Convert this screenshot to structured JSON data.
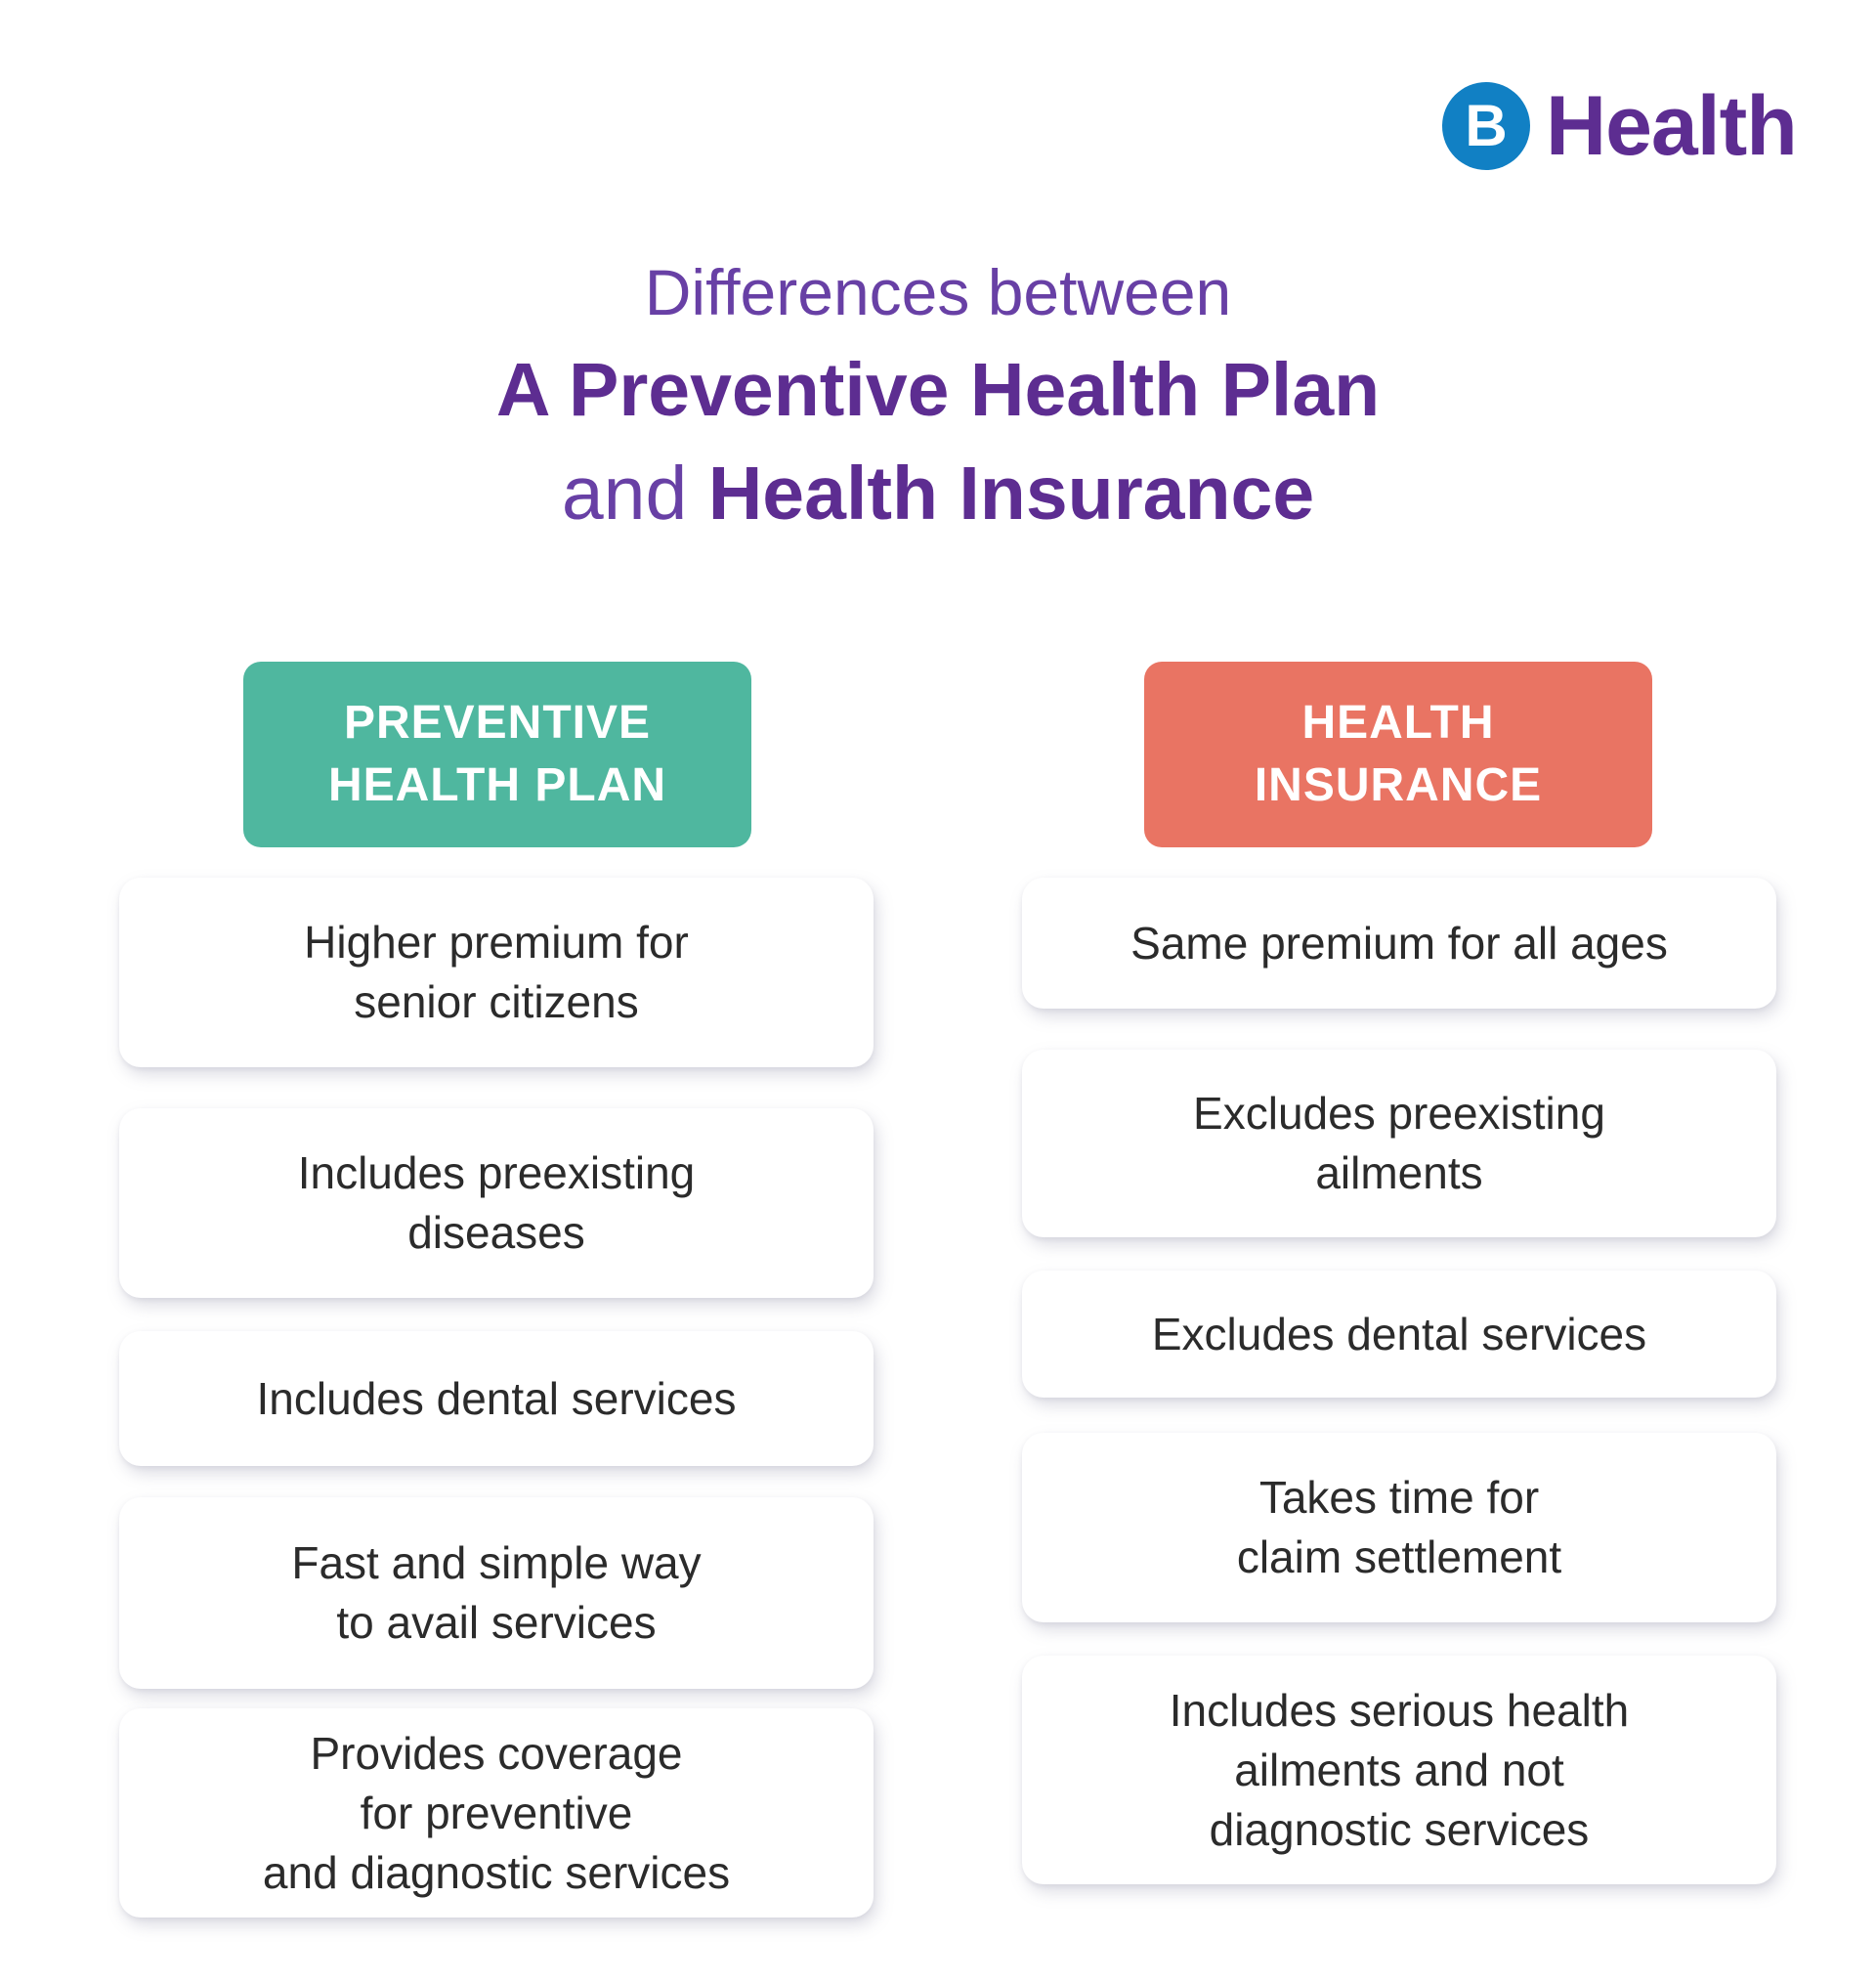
{
  "logo": {
    "brand_letter": "B",
    "brand_text": "Health",
    "circle_color": "#1180c4",
    "text_color": "#5d2d91"
  },
  "title": {
    "line1": "Differences between",
    "line2": "A Preventive Health Plan",
    "line3_prefix": "and ",
    "line3_bold": "Health Insurance",
    "color": "#5d2d91"
  },
  "columns": [
    {
      "badge": {
        "lines": [
          "PREVENTIVE",
          "HEALTH PLAN"
        ],
        "color": "#4fb79f"
      },
      "cards": [
        {
          "lines": [
            "Higher premium for",
            "senior citizens"
          ]
        },
        {
          "lines": [
            "Includes preexisting",
            "diseases"
          ]
        },
        {
          "lines": [
            "Includes dental services"
          ]
        },
        {
          "lines": [
            "Fast and simple way",
            "to avail services"
          ]
        },
        {
          "lines": [
            "Provides coverage",
            "for preventive",
            "and diagnostic services"
          ]
        }
      ]
    },
    {
      "badge": {
        "lines": [
          "HEALTH",
          "INSURANCE"
        ],
        "color": "#e97463"
      },
      "cards": [
        {
          "lines": [
            "Same premium for all ages"
          ]
        },
        {
          "lines": [
            "Excludes preexisting",
            "ailments"
          ]
        },
        {
          "lines": [
            "Excludes dental services"
          ]
        },
        {
          "lines": [
            "Takes time for",
            "claim settlement"
          ]
        },
        {
          "lines": [
            "Includes serious health",
            "ailments and not",
            "diagnostic services"
          ]
        }
      ]
    }
  ]
}
